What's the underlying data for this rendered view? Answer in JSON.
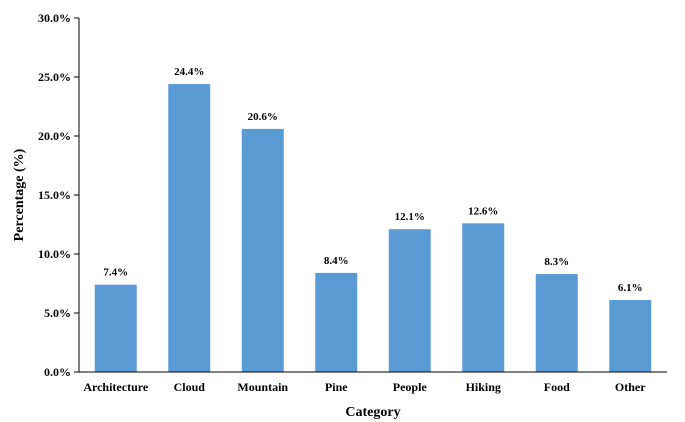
{
  "chart_data": {
    "type": "bar",
    "title": "",
    "xlabel": "Category",
    "ylabel": "Percentage (%)",
    "categories": [
      "Architecture",
      "Cloud",
      "Mountain",
      "Pine",
      "People",
      "Hiking",
      "Food",
      "Other"
    ],
    "values": [
      7.4,
      24.4,
      20.6,
      8.4,
      12.1,
      12.6,
      8.3,
      6.1
    ],
    "data_labels": [
      "7.4%",
      "24.4%",
      "20.6%",
      "8.4%",
      "12.1%",
      "12.6%",
      "8.3%",
      "6.1%"
    ],
    "ylim": [
      0,
      30
    ],
    "yticks": [
      0,
      5,
      10,
      15,
      20,
      25,
      30
    ],
    "ytick_labels": [
      "0.0%",
      "5.0%",
      "10.0%",
      "15.0%",
      "20.0%",
      "25.0%",
      "30.0%"
    ],
    "grid": false,
    "legend": "none",
    "bar_color": "#5b9bd5",
    "axis_color": "#000000"
  }
}
